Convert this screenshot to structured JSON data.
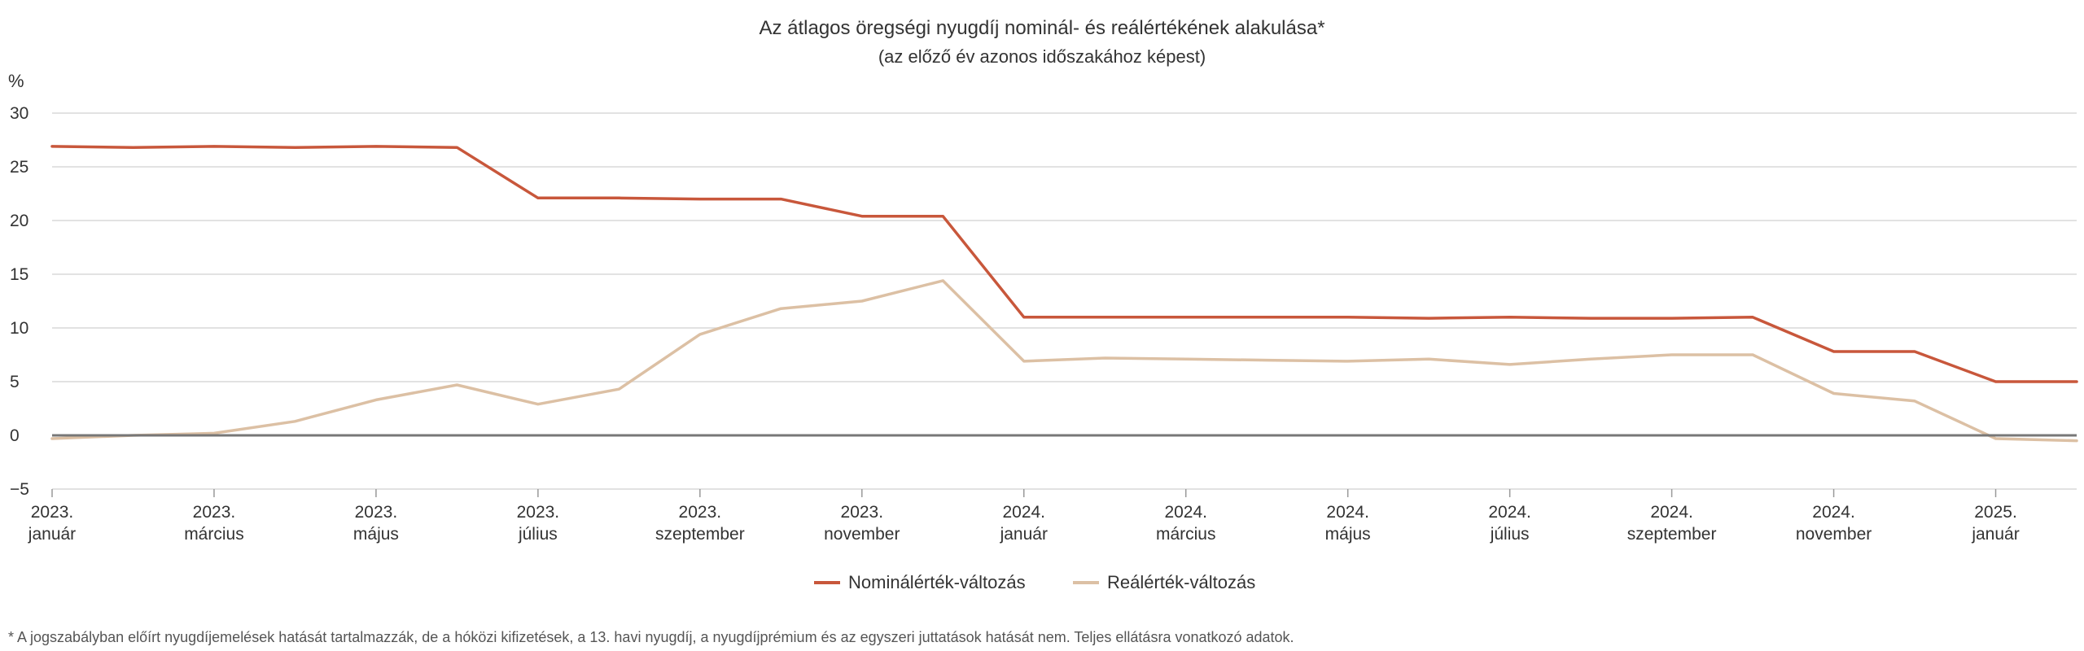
{
  "chart_data": {
    "type": "line",
    "title": "Az átlagos öregségi nyugdíj nominál- és reálértékének alakulása*",
    "subtitle": "(az előző év azonos időszakához képest)",
    "ylabel": "%",
    "ylim": [
      -5,
      30
    ],
    "yticks": [
      30,
      25,
      20,
      15,
      10,
      5,
      0,
      -5
    ],
    "ytick_labels": [
      "30",
      "25",
      "20",
      "15",
      "10",
      "5",
      "0",
      "−5"
    ],
    "x": [
      "2023-01",
      "2023-02",
      "2023-03",
      "2023-04",
      "2023-05",
      "2023-06",
      "2023-07",
      "2023-08",
      "2023-09",
      "2023-10",
      "2023-11",
      "2023-12",
      "2024-01",
      "2024-02",
      "2024-03",
      "2024-04",
      "2024-05",
      "2024-06",
      "2024-07",
      "2024-08",
      "2024-09",
      "2024-10",
      "2024-11",
      "2024-12",
      "2025-01",
      "2025-02"
    ],
    "xtick_labels": [
      {
        "line1": "2023.",
        "line2": "január"
      },
      {
        "line1": "2023.",
        "line2": "március"
      },
      {
        "line1": "2023.",
        "line2": "május"
      },
      {
        "line1": "2023.",
        "line2": "július"
      },
      {
        "line1": "2023.",
        "line2": "szeptember"
      },
      {
        "line1": "2023.",
        "line2": "november"
      },
      {
        "line1": "2024.",
        "line2": "január"
      },
      {
        "line1": "2024.",
        "line2": "március"
      },
      {
        "line1": "2024.",
        "line2": "május"
      },
      {
        "line1": "2024.",
        "line2": "július"
      },
      {
        "line1": "2024.",
        "line2": "szeptember"
      },
      {
        "line1": "2024.",
        "line2": "november"
      },
      {
        "line1": "2025.",
        "line2": "január"
      }
    ],
    "series": [
      {
        "name": "Nominálérték-változás",
        "color": "#c8573b",
        "values": [
          26.9,
          26.8,
          26.9,
          26.8,
          26.9,
          26.8,
          22.1,
          22.1,
          22.0,
          22.0,
          20.4,
          20.4,
          11.0,
          11.0,
          11.0,
          11.0,
          11.0,
          10.9,
          11.0,
          10.9,
          10.9,
          11.0,
          7.8,
          7.8,
          5.0,
          5.0
        ]
      },
      {
        "name": "Reálérték-változás",
        "color": "#dcc0a4",
        "values": [
          -0.3,
          0.0,
          0.2,
          1.3,
          3.3,
          4.7,
          2.9,
          4.3,
          9.4,
          11.8,
          12.5,
          14.4,
          6.9,
          7.2,
          7.1,
          7.0,
          6.9,
          7.1,
          6.6,
          7.1,
          7.5,
          7.5,
          3.9,
          3.2,
          -0.3,
          -0.5
        ]
      }
    ],
    "grid": true,
    "legend_position": "bottom-center",
    "footnote": "* A jogszabályban előírt nyugdíjemelések hatását tartalmazzák, de a hóközi kifizetések, a 13. havi nyugdíj, a nyugdíjprémium és az egyszeri juttatások hatását nem. Teljes ellátásra vonatkozó adatok."
  }
}
